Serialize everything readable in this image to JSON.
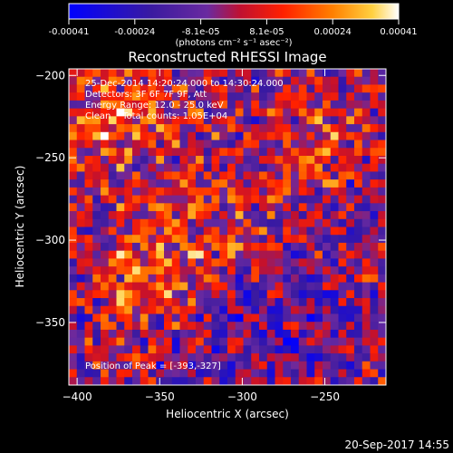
{
  "chart_data": {
    "type": "heatmap",
    "title": "Reconstructed RHESSI Image",
    "xlabel": "Heliocentric X (arcsec)",
    "ylabel": "Heliocentric Y (arcsec)",
    "xlim": [
      -405,
      -213
    ],
    "ylim": [
      -388,
      -196
    ],
    "x_ticks": [
      -400,
      -350,
      -300,
      -250
    ],
    "y_ticks": [
      -200,
      -250,
      -300,
      -350
    ],
    "colorbar": {
      "unit": "(photons cm⁻² s⁻¹ asec⁻²)",
      "vmin": -0.00041,
      "vmax": 0.00041,
      "tick_labels": [
        "-0.00041",
        "-0.00024",
        "-8.1e-05",
        "8.1e-05",
        "0.00024",
        "0.00041"
      ],
      "colors": [
        "#0000ff",
        "#3a1aa0",
        "#6a2aa0",
        "#c01030",
        "#ff2000",
        "#ff8000",
        "#ffd040",
        "#ffffff"
      ]
    },
    "info_lines": [
      "25-Dec-2014 14:20:24.000 to 14:30:24.000",
      "Detectors: 3F 6F 7F 9F, Att",
      "Energy Range: 12.0 - 25.0 keV",
      "Clean    Total counts: 1.05E+04"
    ],
    "peak_label": "Position of Peak = [-393,-327]",
    "peak": [
      -393,
      -327
    ],
    "grid": false
  },
  "timestamp": "20-Sep-2017 14:55"
}
